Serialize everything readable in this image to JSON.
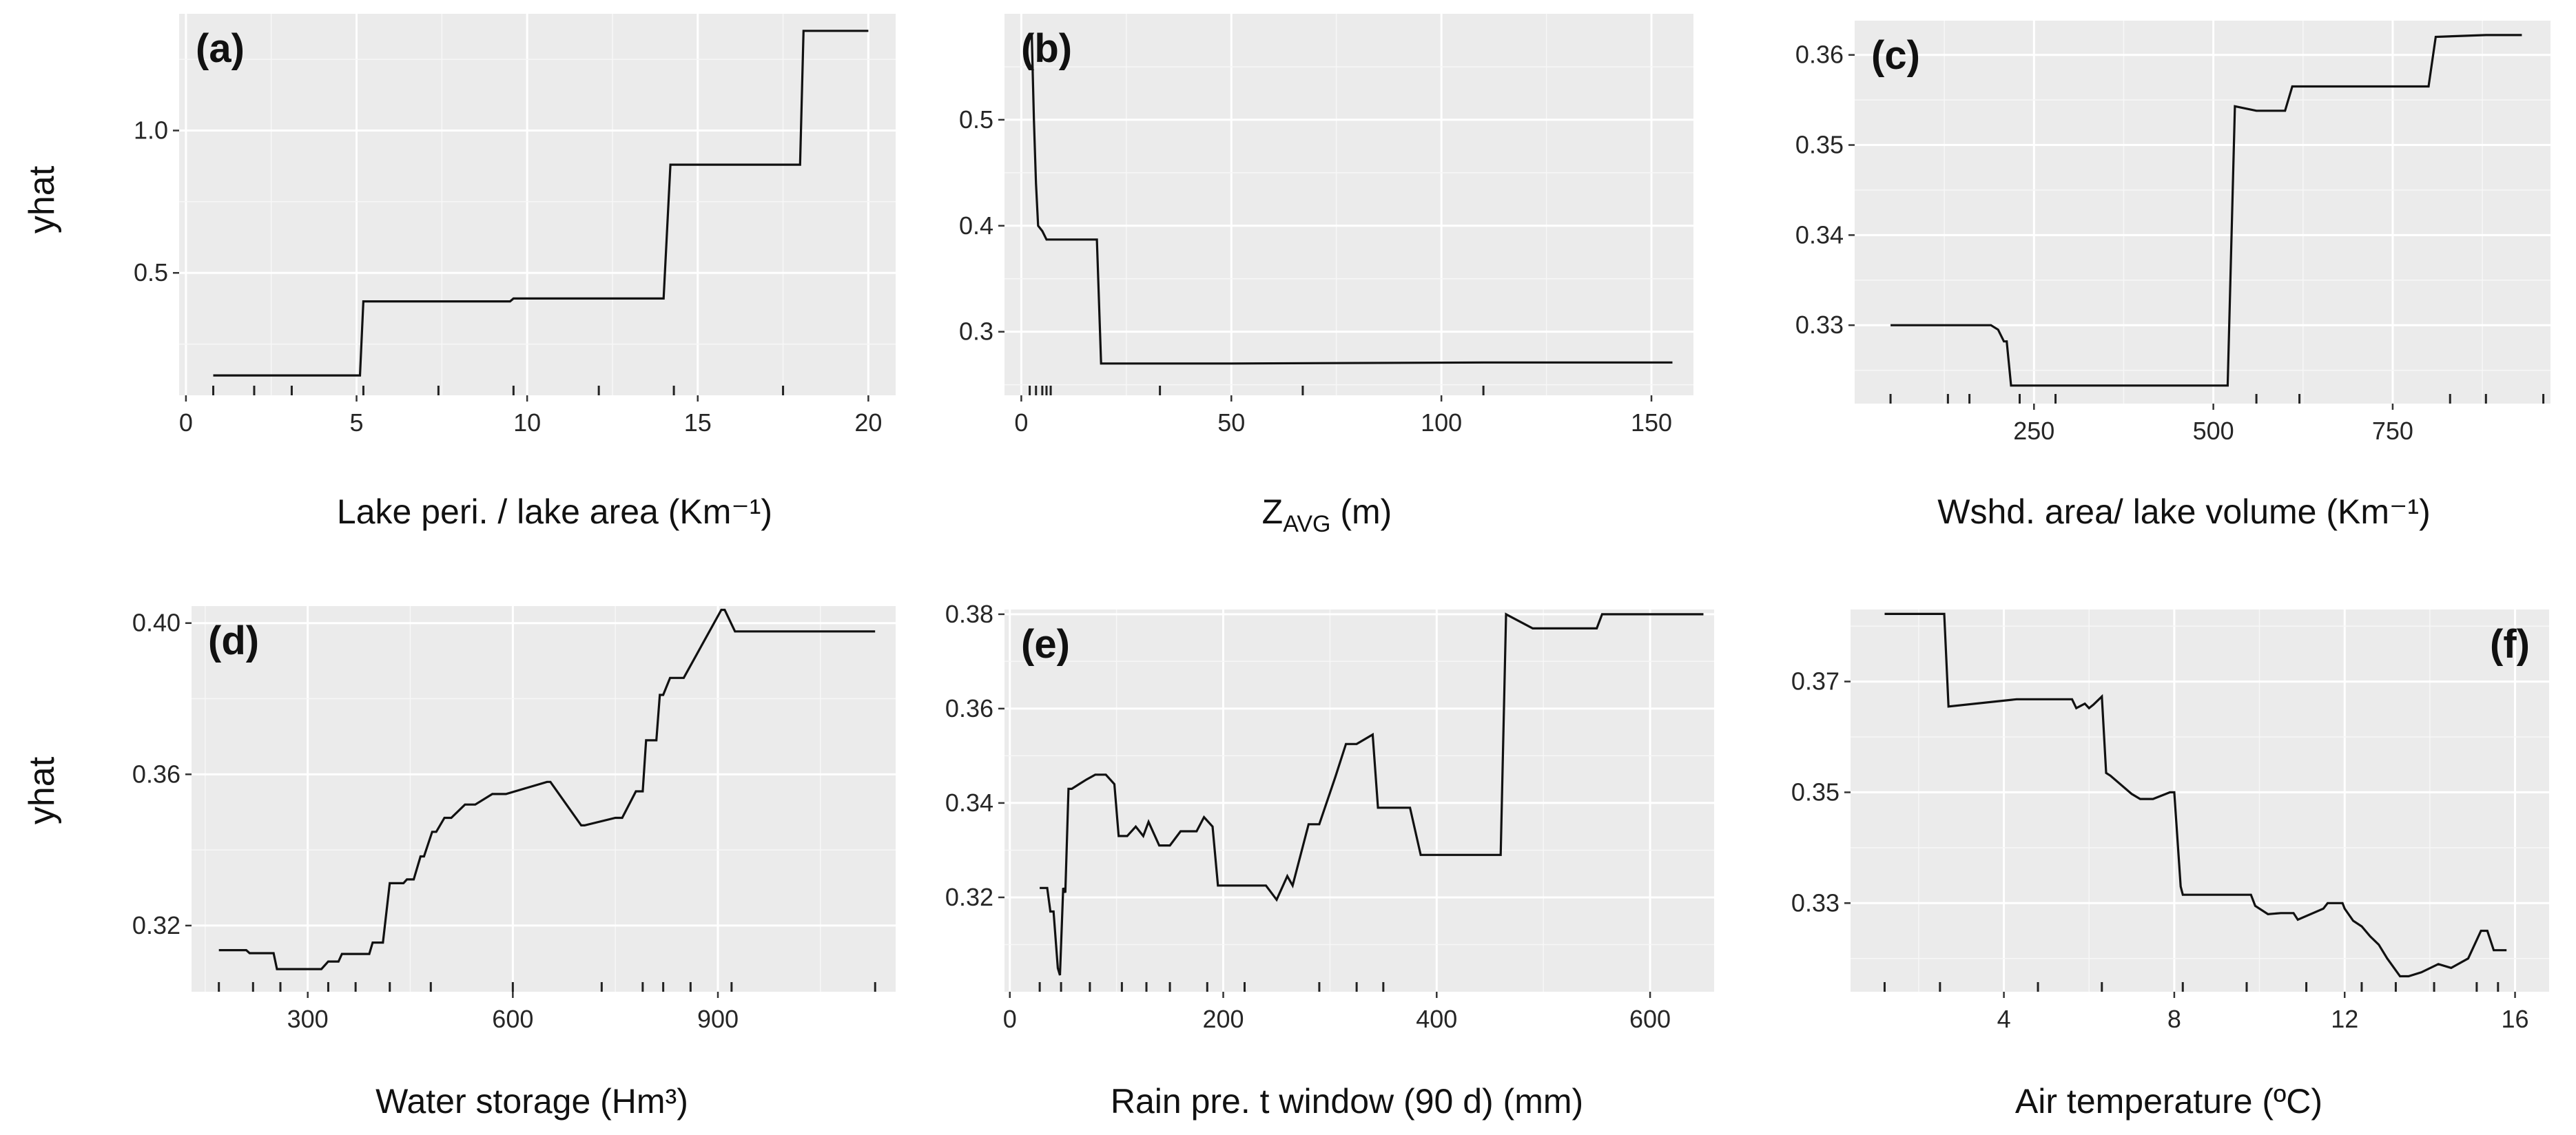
{
  "y_axis_label": "yhat",
  "chart_data": [
    {
      "panel": "(a)",
      "type": "line",
      "xlabel": "Lake peri. / lake area  (Km⁻¹)",
      "ylabel": "yhat",
      "xlim": [
        -0.2,
        20.8
      ],
      "ylim": [
        0.07,
        1.41
      ],
      "xticks": [
        0,
        5,
        10,
        15,
        20
      ],
      "xtick_labels": [
        "0",
        "5",
        "10",
        "15",
        "20"
      ],
      "yticks": [
        0.5,
        1.0
      ],
      "ytick_labels": [
        "0.5",
        "1.0"
      ],
      "tag_position": "top-left",
      "x": [
        0.8,
        5.1,
        5.2,
        9.5,
        9.6,
        14.0,
        14.2,
        18.0,
        18.1,
        20.0
      ],
      "y": [
        0.14,
        0.14,
        0.4,
        0.4,
        0.41,
        0.41,
        0.88,
        0.88,
        1.35,
        1.35
      ],
      "rug": [
        0.8,
        2.0,
        3.1,
        5.2,
        7.4,
        9.6,
        12.1,
        14.3,
        17.5
      ]
    },
    {
      "panel": "(b)",
      "type": "line",
      "xlabel": "Z",
      "xlabel_sub": "AVG",
      "xlabel_suffix": " (m)",
      "ylabel": "",
      "xlim": [
        -4,
        160
      ],
      "ylim": [
        0.24,
        0.6
      ],
      "xticks": [
        0,
        50,
        100,
        150
      ],
      "xtick_labels": [
        "0",
        "50",
        "100",
        "150"
      ],
      "yticks": [
        0.3,
        0.4,
        0.5
      ],
      "ytick_labels": [
        "0.3",
        "0.4",
        "0.5"
      ],
      "tag_position": "top-left",
      "x": [
        2.5,
        3.0,
        3.5,
        4.0,
        5.0,
        6.0,
        8.0,
        18.0,
        19.0,
        50.0,
        110.0,
        155.0
      ],
      "y": [
        0.58,
        0.5,
        0.44,
        0.4,
        0.395,
        0.387,
        0.387,
        0.387,
        0.27,
        0.27,
        0.271,
        0.271
      ],
      "rug": [
        2.0,
        3.5,
        5.0,
        6.0,
        7.0,
        33.0,
        67.0,
        110.0
      ]
    },
    {
      "panel": "(c)",
      "type": "line",
      "xlabel": "Wshd. area/ lake volume (Km⁻¹)",
      "ylabel": "",
      "xlim": [
        0,
        970
      ],
      "ylim": [
        0.3213,
        0.3638
      ],
      "xticks": [
        250,
        500,
        750
      ],
      "xtick_labels": [
        "250",
        "500",
        "750"
      ],
      "yticks": [
        0.33,
        0.34,
        0.35,
        0.36
      ],
      "ytick_labels": [
        "0.33",
        "0.34",
        "0.35",
        "0.36"
      ],
      "tag_position": "top-left",
      "x": [
        50,
        190,
        200,
        208,
        212,
        218,
        228,
        520,
        530,
        560,
        600,
        610,
        800,
        810,
        880,
        930
      ],
      "y": [
        0.33,
        0.33,
        0.3295,
        0.3282,
        0.3282,
        0.3233,
        0.3233,
        0.3233,
        0.3543,
        0.3538,
        0.3538,
        0.3565,
        0.3565,
        0.362,
        0.3622,
        0.3622
      ],
      "rug": [
        50,
        130,
        160,
        230,
        280,
        560,
        620,
        830,
        880,
        960
      ]
    },
    {
      "panel": "(d)",
      "type": "line",
      "xlabel": "Water storage (Hm³)",
      "ylabel": "yhat",
      "xlim": [
        130,
        1160
      ],
      "ylim": [
        0.3025,
        0.4045
      ],
      "xticks": [
        300,
        600,
        900
      ],
      "xtick_labels": [
        "300",
        "600",
        "900"
      ],
      "yticks": [
        0.32,
        0.36,
        0.4
      ],
      "ytick_labels": [
        "0.32",
        "0.36",
        "0.40"
      ],
      "tag_position": "top-left",
      "x": [
        170,
        210,
        215,
        250,
        255,
        320,
        330,
        345,
        350,
        390,
        395,
        410,
        420,
        440,
        445,
        455,
        465,
        470,
        482,
        488,
        500,
        510,
        530,
        545,
        570,
        590,
        650,
        655,
        700,
        705,
        750,
        760,
        780,
        790,
        795,
        810,
        815,
        820,
        830,
        835,
        850,
        905,
        910,
        925,
        935,
        1130
      ],
      "y": [
        0.3135,
        0.3135,
        0.3127,
        0.3127,
        0.3085,
        0.3085,
        0.3105,
        0.3105,
        0.3125,
        0.3125,
        0.3155,
        0.3155,
        0.3312,
        0.3312,
        0.3322,
        0.3322,
        0.3383,
        0.3383,
        0.3448,
        0.3448,
        0.3485,
        0.3485,
        0.352,
        0.352,
        0.3548,
        0.3548,
        0.358,
        0.358,
        0.3465,
        0.3465,
        0.3485,
        0.3485,
        0.3555,
        0.3555,
        0.369,
        0.369,
        0.381,
        0.381,
        0.3855,
        0.3855,
        0.3855,
        0.4035,
        0.4035,
        0.3978,
        0.3978,
        0.3978
      ],
      "rug": [
        170,
        220,
        260,
        330,
        370,
        420,
        480,
        600,
        730,
        790,
        820,
        860,
        920,
        1130
      ]
    },
    {
      "panel": "(e)",
      "type": "line",
      "xlabel": "Rain pre. t window (90 d) (mm)",
      "ylabel": "",
      "xlim": [
        -5,
        660
      ],
      "ylim": [
        0.3,
        0.381
      ],
      "xticks": [
        0,
        200,
        400,
        600
      ],
      "xtick_labels": [
        "0",
        "200",
        "400",
        "600"
      ],
      "yticks": [
        0.32,
        0.34,
        0.36,
        0.38
      ],
      "ytick_labels": [
        "0.32",
        "0.34",
        "0.36",
        "0.38"
      ],
      "tag_position": "top-left",
      "x": [
        28,
        35,
        38,
        41,
        45,
        47,
        50,
        52,
        55,
        58,
        65,
        72,
        80,
        90,
        98,
        102,
        110,
        118,
        125,
        130,
        140,
        150,
        160,
        175,
        182,
        190,
        195,
        240,
        250,
        260,
        265,
        280,
        290,
        305,
        315,
        325,
        340,
        345,
        360,
        375,
        385,
        460,
        465,
        490,
        550,
        555,
        650
      ],
      "y": [
        0.322,
        0.322,
        0.317,
        0.317,
        0.305,
        0.3035,
        0.322,
        0.321,
        0.343,
        0.343,
        0.344,
        0.345,
        0.346,
        0.346,
        0.344,
        0.333,
        0.333,
        0.335,
        0.333,
        0.336,
        0.331,
        0.331,
        0.334,
        0.334,
        0.337,
        0.335,
        0.3225,
        0.3225,
        0.3195,
        0.3245,
        0.3225,
        0.3355,
        0.3355,
        0.3455,
        0.3525,
        0.3525,
        0.3545,
        0.339,
        0.339,
        0.339,
        0.329,
        0.329,
        0.38,
        0.377,
        0.377,
        0.38,
        0.38
      ],
      "rug": [
        28,
        48,
        75,
        105,
        128,
        150,
        185,
        220,
        290,
        325,
        350
      ]
    },
    {
      "panel": "(f)",
      "type": "line",
      "xlabel": "Air temperature (ºC)",
      "ylabel": "",
      "xlim": [
        0.4,
        16.8
      ],
      "ylim": [
        0.314,
        0.383
      ],
      "xticks": [
        4,
        8,
        12,
        16
      ],
      "xtick_labels": [
        "4",
        "8",
        "12",
        "16"
      ],
      "yticks": [
        0.33,
        0.35,
        0.37
      ],
      "ytick_labels": [
        "0.33",
        "0.35",
        "0.37"
      ],
      "tag_position": "top-right",
      "x": [
        1.2,
        2.6,
        2.7,
        4.3,
        5.6,
        5.7,
        5.9,
        6.0,
        6.1,
        6.3,
        6.4,
        6.5,
        7.0,
        7.2,
        7.5,
        7.9,
        8.0,
        8.15,
        8.2,
        8.3,
        9.8,
        9.9,
        10.2,
        10.5,
        10.8,
        10.9,
        11.5,
        11.6,
        11.95,
        12.0,
        12.2,
        12.4,
        12.6,
        12.8,
        13.0,
        13.3,
        13.5,
        13.8,
        14.2,
        14.5,
        14.9,
        15.2,
        15.35,
        15.5,
        15.8
      ],
      "y": [
        0.3822,
        0.3822,
        0.3655,
        0.3668,
        0.3668,
        0.3652,
        0.366,
        0.3652,
        0.3658,
        0.3673,
        0.3535,
        0.353,
        0.3497,
        0.3488,
        0.3488,
        0.35,
        0.35,
        0.333,
        0.3315,
        0.3315,
        0.3315,
        0.3295,
        0.328,
        0.3282,
        0.3282,
        0.327,
        0.329,
        0.33,
        0.33,
        0.329,
        0.3268,
        0.3258,
        0.324,
        0.3225,
        0.32,
        0.3168,
        0.3168,
        0.3175,
        0.319,
        0.3183,
        0.32,
        0.325,
        0.325,
        0.3215,
        0.3215
      ],
      "rug": [
        1.2,
        2.5,
        4.8,
        6.3,
        8.2,
        9.7,
        11.1,
        12.4,
        13.2,
        14.1,
        15.1,
        15.6
      ]
    }
  ]
}
